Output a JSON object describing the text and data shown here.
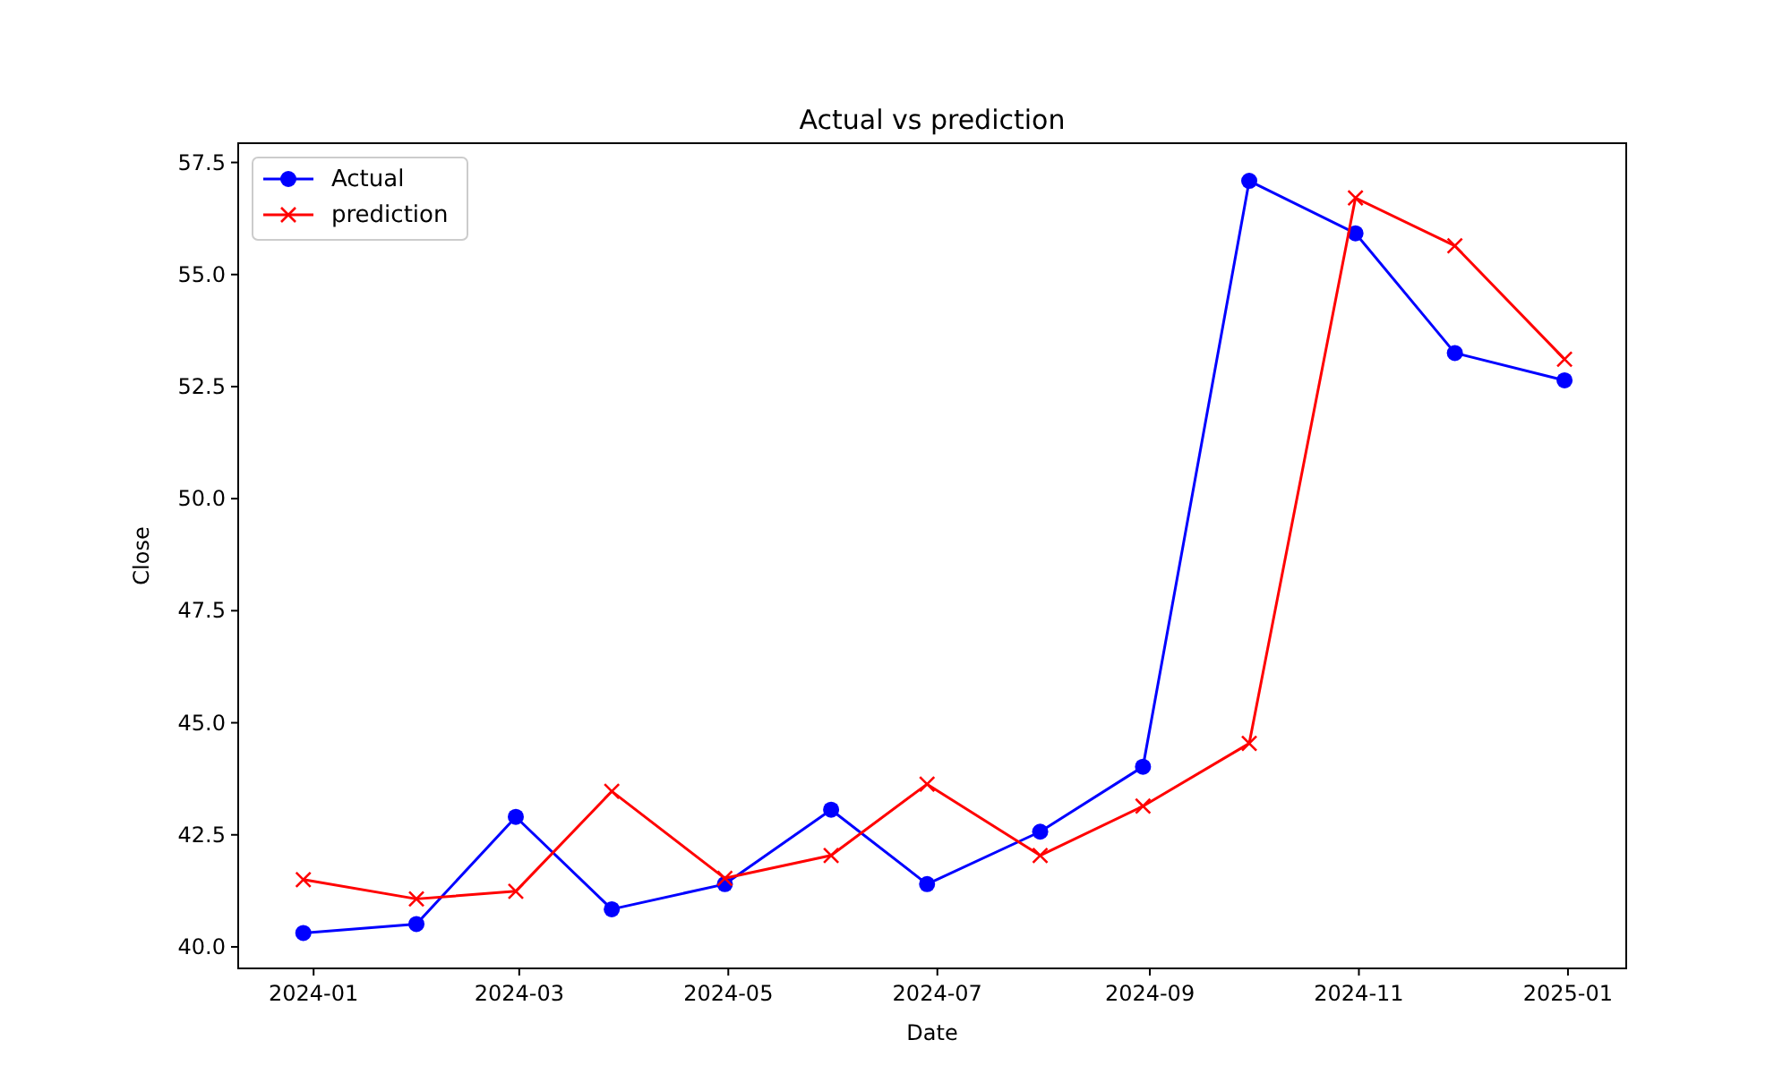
{
  "chart_data": {
    "type": "line",
    "title": "Actual vs prediction",
    "xlabel": "Date",
    "ylabel": "Close",
    "x": [
      "2023-12-29",
      "2024-01-31",
      "2024-02-29",
      "2024-03-28",
      "2024-04-30",
      "2024-05-31",
      "2024-06-28",
      "2024-07-31",
      "2024-08-30",
      "2024-09-30",
      "2024-10-31",
      "2024-11-29",
      "2024-12-31"
    ],
    "series": [
      {
        "name": "Actual",
        "color": "#0000ff",
        "marker": "circle",
        "values": [
          40.31,
          40.51,
          42.9,
          40.84,
          41.4,
          43.06,
          41.4,
          42.57,
          44.02,
          57.09,
          55.92,
          53.25,
          52.64
        ]
      },
      {
        "name": "prediction",
        "color": "#ff0000",
        "marker": "cross",
        "values": [
          41.5,
          41.07,
          41.24,
          43.47,
          41.53,
          42.04,
          43.63,
          42.04,
          43.14,
          44.54,
          56.71,
          55.64,
          53.11
        ]
      }
    ],
    "xlim": [
      "2023-12-10",
      "2025-01-18"
    ],
    "xticks": [
      {
        "value": "2024-01-01",
        "label": "2024-01"
      },
      {
        "value": "2024-03-01",
        "label": "2024-03"
      },
      {
        "value": "2024-05-01",
        "label": "2024-05"
      },
      {
        "value": "2024-07-01",
        "label": "2024-07"
      },
      {
        "value": "2024-09-01",
        "label": "2024-09"
      },
      {
        "value": "2024-11-01",
        "label": "2024-11"
      },
      {
        "value": "2025-01-01",
        "label": "2025-01"
      }
    ],
    "ylim": [
      39.52,
      57.93
    ],
    "yticks": [
      {
        "value": 40,
        "label": "40.0"
      },
      {
        "value": 42.5,
        "label": "42.5"
      },
      {
        "value": 45,
        "label": "45.0"
      },
      {
        "value": 47.5,
        "label": "47.5"
      },
      {
        "value": 50,
        "label": "50.0"
      },
      {
        "value": 52.5,
        "label": "52.5"
      },
      {
        "value": 55,
        "label": "55.0"
      },
      {
        "value": 57.5,
        "label": "57.5"
      }
    ],
    "grid": false,
    "legend": "top left",
    "line_style": "solid"
  }
}
